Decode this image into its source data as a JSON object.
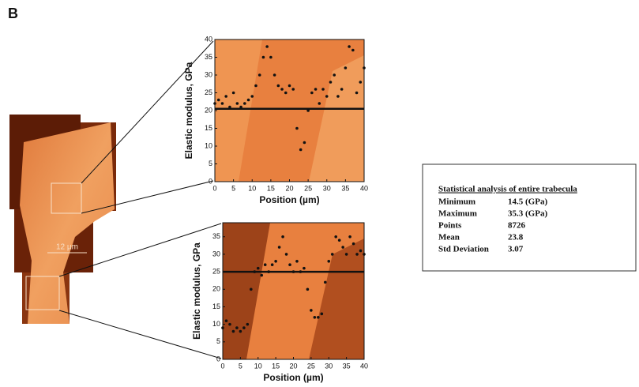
{
  "panel_label": "B",
  "scale_bar_label": "12 µm",
  "chart_data": [
    {
      "type": "scatter",
      "xlabel": "Position (µm)",
      "ylabel": "Elastic modulus, GPa",
      "x": [
        0,
        1,
        2,
        3,
        4,
        5,
        6,
        7,
        8,
        9,
        10,
        11,
        12,
        13,
        14,
        15,
        16,
        17,
        18,
        19,
        20,
        21,
        22,
        23,
        24,
        25,
        26,
        27,
        28,
        29,
        30,
        31,
        32,
        33,
        34,
        35,
        36,
        37,
        38,
        39,
        40
      ],
      "values": [
        22,
        23,
        22,
        24,
        21,
        25,
        22,
        21,
        22,
        23,
        24,
        27,
        30,
        35,
        38,
        35,
        30,
        27,
        26,
        25,
        27,
        26,
        15,
        9,
        11,
        20,
        25,
        26,
        22,
        26,
        24,
        28,
        30,
        24,
        26,
        32,
        38,
        37,
        25,
        28,
        32
      ],
      "mean_line": 20.5,
      "color": "#111111",
      "xlim": [
        0,
        40
      ],
      "xticks": [
        0,
        5,
        10,
        15,
        20,
        25,
        30,
        35,
        40
      ],
      "ylim": [
        0,
        40
      ],
      "yticks": [
        0,
        5,
        10,
        15,
        20,
        25,
        30,
        35,
        40
      ]
    },
    {
      "type": "scatter",
      "xlabel": "Position (µm)",
      "ylabel": "Elastic modulus, GPa",
      "x": [
        0,
        1,
        2,
        3,
        4,
        5,
        6,
        7,
        8,
        9,
        10,
        11,
        12,
        13,
        14,
        15,
        16,
        17,
        18,
        19,
        20,
        21,
        22,
        23,
        24,
        25,
        26,
        27,
        28,
        29,
        30,
        31,
        32,
        33,
        34,
        35,
        36,
        37,
        38,
        39,
        40
      ],
      "values": [
        9,
        11,
        10,
        8,
        9,
        8,
        9,
        10,
        20,
        25,
        26,
        24,
        27,
        25,
        27,
        28,
        32,
        35,
        30,
        27,
        25,
        28,
        25,
        26,
        20,
        14,
        12,
        12,
        13,
        22,
        28,
        30,
        35,
        34,
        32,
        30,
        35,
        33,
        30,
        31,
        30
      ],
      "mean_line": 25,
      "color": "#111111",
      "xlim": [
        0,
        40
      ],
      "xticks": [
        0,
        5,
        10,
        15,
        20,
        25,
        30,
        35,
        40
      ],
      "ylim": [
        0,
        39
      ],
      "yticks": [
        0,
        5,
        10,
        15,
        20,
        25,
        30,
        35
      ]
    }
  ],
  "table": {
    "title": "Statistical analysis of entire trabecula",
    "rows": [
      [
        "Minimum",
        "14.5 (GPa)"
      ],
      [
        "Maximum",
        "35.3 (GPa)"
      ],
      [
        "Points",
        "8726"
      ],
      [
        "Mean",
        "23.8"
      ],
      [
        "Std Deviation",
        "3.07"
      ]
    ]
  }
}
